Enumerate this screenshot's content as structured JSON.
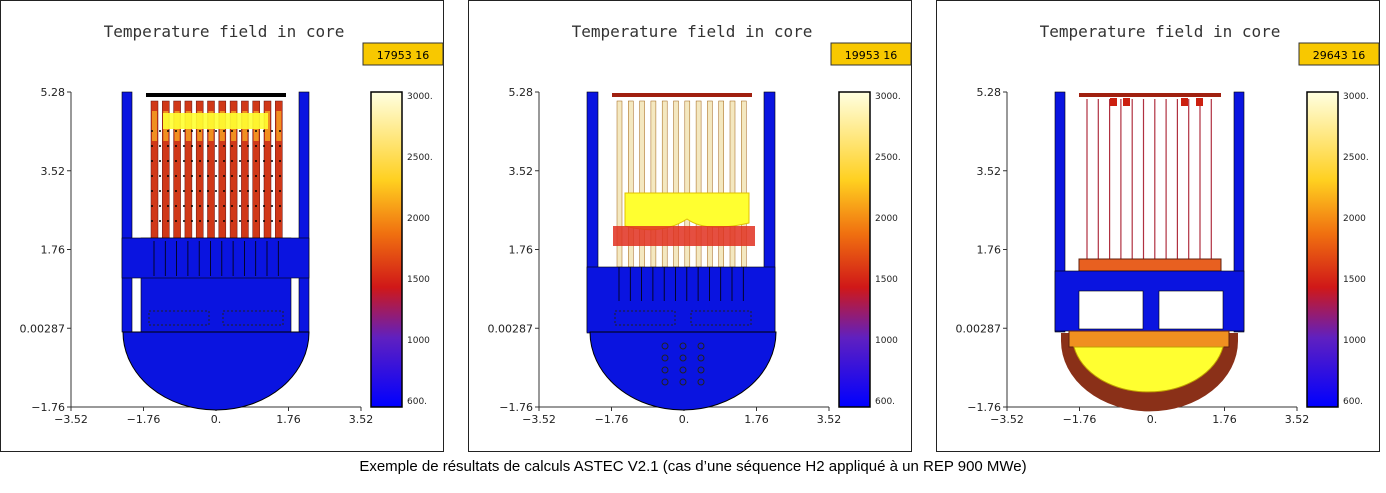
{
  "caption": "Exemple de résultats de calculs ASTEC V2.1 (cas d’une séquence H2 appliqué à un REP 900 MWe)",
  "colors": {
    "badge_fill": "#f8c800",
    "vessel_cold": "#0a14e0",
    "hot_yellow": "#ffff30",
    "red": "#cc2010",
    "orange": "#f09020"
  },
  "panels": [
    {
      "title": "Temperature field in core",
      "time_badge": "17953 16",
      "state": "intact core, fuel rods hot in upper region"
    },
    {
      "title": "Temperature field in core",
      "time_badge": "19953 16",
      "state": "molten pool forming in upper core"
    },
    {
      "title": "Temperature field in core",
      "time_badge": "29643 16",
      "state": "corium relocated to lower head"
    }
  ],
  "chart_data": [
    {
      "type": "heatmap",
      "title": "Temperature field in core",
      "annotation": "17953 16",
      "x_ticks": [
        "−3.52",
        "−1.76",
        "0.",
        "1.76",
        "3.52"
      ],
      "y_ticks": [
        "5.28",
        "3.52",
        "1.76",
        "0.00287",
        "−1.76"
      ],
      "xlim": [
        -3.52,
        3.52
      ],
      "ylim": [
        -1.76,
        5.28
      ],
      "colorbar": {
        "ticks": [
          "3000.",
          "2500.",
          "2000",
          "1500",
          "1000",
          "600."
        ],
        "range": [
          600,
          3000
        ]
      }
    },
    {
      "type": "heatmap",
      "title": "Temperature field in core",
      "annotation": "19953 16",
      "x_ticks": [
        "−3.52",
        "−1.76",
        "0.",
        "1.76",
        "3.52"
      ],
      "y_ticks": [
        "5.28",
        "3.52",
        "1.76",
        "0.00287",
        "−1.76"
      ],
      "xlim": [
        -3.52,
        3.52
      ],
      "ylim": [
        -1.76,
        5.28
      ],
      "colorbar": {
        "ticks": [
          "3000.",
          "2500.",
          "2000",
          "1500",
          "1000",
          "600."
        ],
        "range": [
          600,
          3000
        ]
      }
    },
    {
      "type": "heatmap",
      "title": "Temperature field in core",
      "annotation": "29643 16",
      "x_ticks": [
        "−3.52",
        "−1.76",
        "0.",
        "1.76",
        "3.52"
      ],
      "y_ticks": [
        "5.28",
        "3.52",
        "1.76",
        "0.00287",
        "−1.76"
      ],
      "xlim": [
        -3.52,
        3.52
      ],
      "ylim": [
        -1.76,
        5.28
      ],
      "colorbar": {
        "ticks": [
          "3000.",
          "2500.",
          "2000",
          "1500",
          "1000",
          "600."
        ],
        "range": [
          600,
          3000
        ]
      }
    }
  ]
}
